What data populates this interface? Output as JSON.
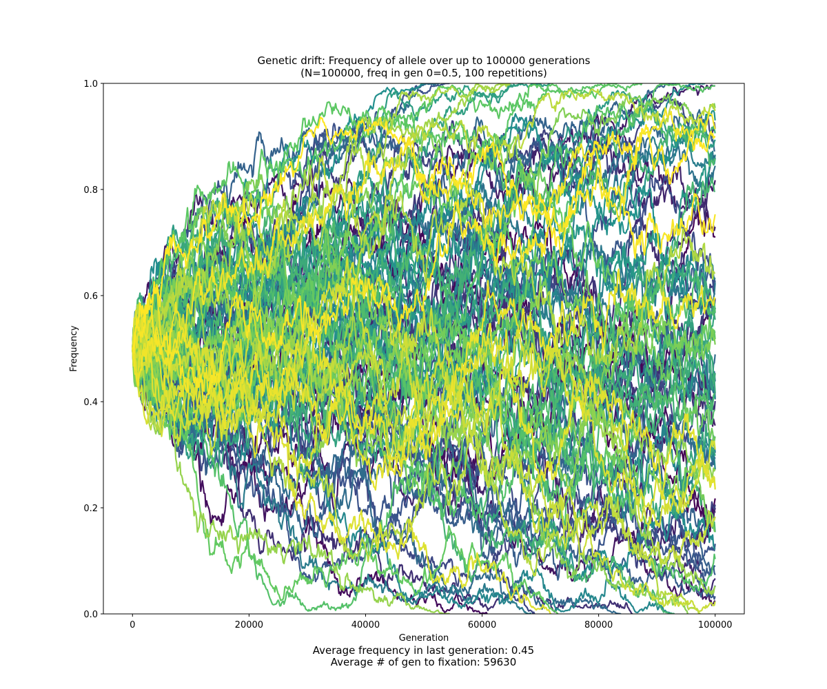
{
  "chart_data": {
    "type": "line",
    "title": "Genetic drift: Frequency of allele over up to 100000 generations",
    "subtitle": "(N=100000, freq in gen 0=0.5, 100 repetitions)",
    "xlabel": "Generation",
    "ylabel": "Frequency",
    "xlim": [
      -5000,
      105000
    ],
    "ylim": [
      0.0,
      1.0
    ],
    "xticks": [
      0,
      20000,
      40000,
      60000,
      80000,
      100000
    ],
    "xtick_labels": [
      "0",
      "20000",
      "40000",
      "60000",
      "80000",
      "100000"
    ],
    "yticks": [
      0.0,
      0.2,
      0.4,
      0.6,
      0.8,
      1.0
    ],
    "ytick_labels": [
      "0.0",
      "0.2",
      "0.4",
      "0.6",
      "0.8",
      "1.0"
    ],
    "grid": false,
    "legend": "none",
    "n_series": 100,
    "series_start": 0.5,
    "generations": 100000,
    "colormap": [
      "#440154",
      "#3b528b",
      "#21908d",
      "#5dc863",
      "#fde725"
    ],
    "footer_lines": [
      "Average frequency in last generation: 0.45",
      "Average # of gen to fixation: 59630"
    ]
  }
}
